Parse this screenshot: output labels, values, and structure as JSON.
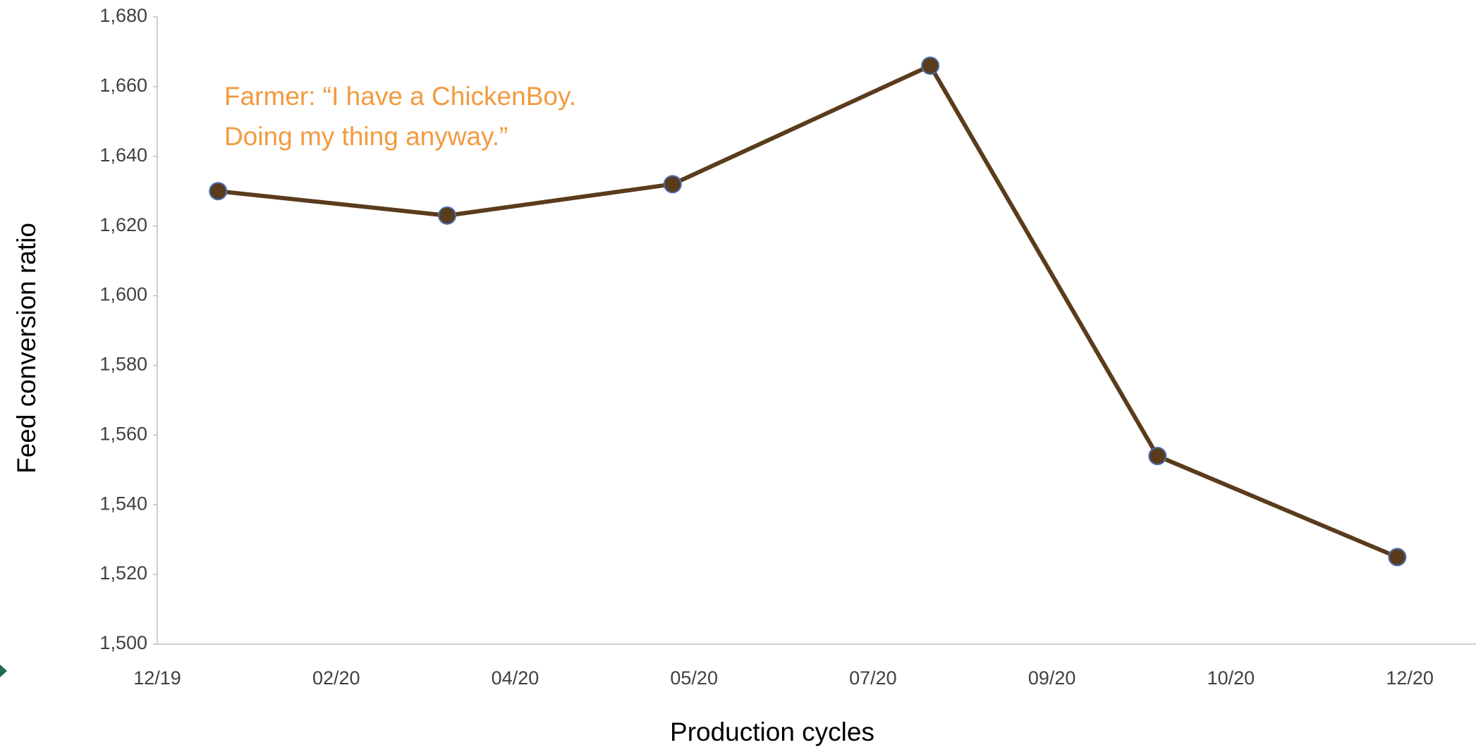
{
  "chart_data": {
    "type": "line",
    "ylabel": "Feed conversion ratio",
    "xlabel": "Production cycles",
    "annotation": [
      "Farmer: “I have a ChickenBoy.",
      "Doing my thing anyway.”"
    ],
    "x": [
      0.34,
      1.62,
      2.88,
      4.32,
      5.59,
      6.93
    ],
    "series": [
      {
        "name": "Feed conversion ratio",
        "color": "#5a3c1c",
        "values": [
          1630,
          1623,
          1632,
          1666,
          1554,
          1525
        ]
      }
    ],
    "xlim": [
      0,
      7.37
    ],
    "xticks": [
      {
        "value": 0,
        "label": "12/19"
      },
      {
        "value": 1,
        "label": "02/20"
      },
      {
        "value": 2,
        "label": "04/20"
      },
      {
        "value": 3,
        "label": "05/20"
      },
      {
        "value": 4,
        "label": "07/20"
      },
      {
        "value": 5,
        "label": "09/20"
      },
      {
        "value": 6,
        "label": "10/20"
      },
      {
        "value": 7,
        "label": "12/20"
      }
    ],
    "ylim": [
      1500,
      1680
    ],
    "yticks": [
      {
        "value": 1500,
        "label": "1,500"
      },
      {
        "value": 1520,
        "label": "1,520"
      },
      {
        "value": 1540,
        "label": "1,540"
      },
      {
        "value": 1560,
        "label": "1,560"
      },
      {
        "value": 1580,
        "label": "1,580"
      },
      {
        "value": 1600,
        "label": "1,600"
      },
      {
        "value": 1620,
        "label": "1,620"
      },
      {
        "value": 1640,
        "label": "1,640"
      },
      {
        "value": 1660,
        "label": "1,660"
      },
      {
        "value": 1680,
        "label": "1,680"
      }
    ],
    "grid": false,
    "annotation_color": "#f29a3f",
    "marker_edge_color": "#4a6fb0"
  }
}
